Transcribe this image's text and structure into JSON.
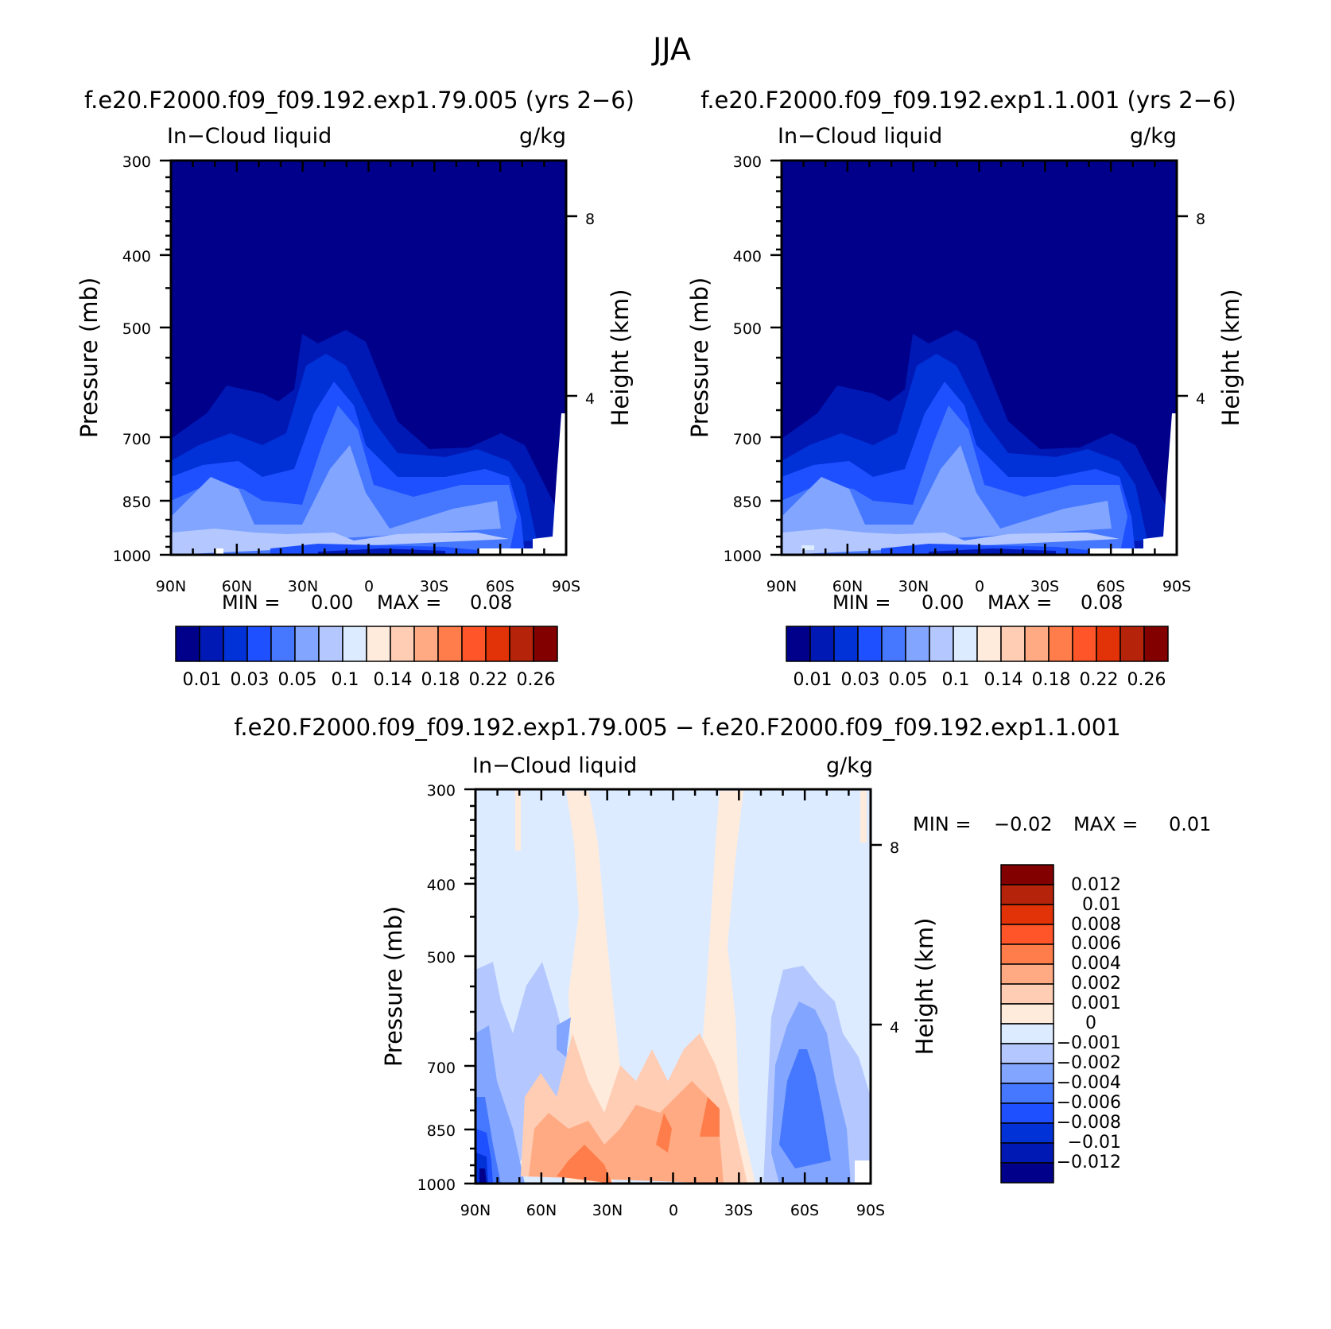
{
  "figure_title": "JJA",
  "chart_data": [
    {
      "type": "contour",
      "run_label": "f.e20.F2000.f09_f09.192.exp1.79.005 (yrs 2−6)",
      "title": "In−Cloud liquid",
      "units": "g/kg",
      "xlabel": "",
      "ylabel": "Pressure (mb)",
      "ylabel_right": "Height (km)",
      "x_ticks": [
        "90N",
        "60N",
        "30N",
        "0",
        "30S",
        "60S",
        "90S"
      ],
      "y_ticks": [
        "300",
        "400",
        "500",
        "700",
        "850",
        "1000"
      ],
      "y_ticks_right": [
        "8",
        "4"
      ],
      "stats": {
        "min_label": "MIN =",
        "min": "0.00",
        "max_label": "MAX =",
        "max": "0.08"
      },
      "colorbar": {
        "colors": [
          "#00008b",
          "#0019b4",
          "#0032d8",
          "#1f50ff",
          "#4678ff",
          "#82a5ff",
          "#b4c8ff",
          "#dcebff",
          "#ffebdc",
          "#ffcdb4",
          "#ffaa82",
          "#ff7d4b",
          "#ff5528",
          "#e13208",
          "#b4230a",
          "#820000"
        ],
        "labels": [
          "0.01",
          "0.03",
          "0.05",
          "0.1",
          "0.14",
          "0.18",
          "0.22",
          "0.26"
        ]
      }
    },
    {
      "type": "contour",
      "run_label": "f.e20.F2000.f09_f09.192.exp1.1.001 (yrs 2−6)",
      "title": "In−Cloud liquid",
      "units": "g/kg",
      "xlabel": "",
      "ylabel": "Pressure (mb)",
      "ylabel_right": "Height (km)",
      "x_ticks": [
        "90N",
        "60N",
        "30N",
        "0",
        "30S",
        "60S",
        "90S"
      ],
      "y_ticks": [
        "300",
        "400",
        "500",
        "700",
        "850",
        "1000"
      ],
      "y_ticks_right": [
        "8",
        "4"
      ],
      "stats": {
        "min_label": "MIN =",
        "min": "0.00",
        "max_label": "MAX =",
        "max": "0.08"
      },
      "colorbar": {
        "colors": [
          "#00008b",
          "#0019b4",
          "#0032d8",
          "#1f50ff",
          "#4678ff",
          "#82a5ff",
          "#b4c8ff",
          "#dcebff",
          "#ffebdc",
          "#ffcdb4",
          "#ffaa82",
          "#ff7d4b",
          "#ff5528",
          "#e13208",
          "#b4230a",
          "#820000"
        ],
        "labels": [
          "0.01",
          "0.03",
          "0.05",
          "0.1",
          "0.14",
          "0.18",
          "0.22",
          "0.26"
        ]
      }
    },
    {
      "type": "contour",
      "run_label": "f.e20.F2000.f09_f09.192.exp1.79.005 − f.e20.F2000.f09_f09.192.exp1.1.001",
      "title": "In−Cloud liquid",
      "units": "g/kg",
      "xlabel": "",
      "ylabel": "Pressure (mb)",
      "ylabel_right": "Height (km)",
      "x_ticks": [
        "90N",
        "60N",
        "30N",
        "0",
        "30S",
        "60S",
        "90S"
      ],
      "y_ticks": [
        "300",
        "400",
        "500",
        "700",
        "850",
        "1000"
      ],
      "y_ticks_right": [
        "8",
        "4"
      ],
      "stats": {
        "min_label": "MIN =",
        "min": "−0.02",
        "max_label": "MAX =",
        "max": "0.01"
      },
      "colorbar": {
        "colors": [
          "#820000",
          "#b4230a",
          "#e13208",
          "#ff5528",
          "#ff7d4b",
          "#ffaa82",
          "#ffcdb4",
          "#ffebdc",
          "#dcebff",
          "#b4c8ff",
          "#82a5ff",
          "#4678ff",
          "#1f50ff",
          "#0032d8",
          "#0019b4",
          "#00008b"
        ],
        "labels": [
          "0.012",
          "0.01",
          "0.008",
          "0.006",
          "0.004",
          "0.002",
          "0.001",
          "0",
          "−0.001",
          "−0.002",
          "−0.004",
          "−0.006",
          "−0.008",
          "−0.01",
          "−0.012"
        ]
      }
    }
  ]
}
